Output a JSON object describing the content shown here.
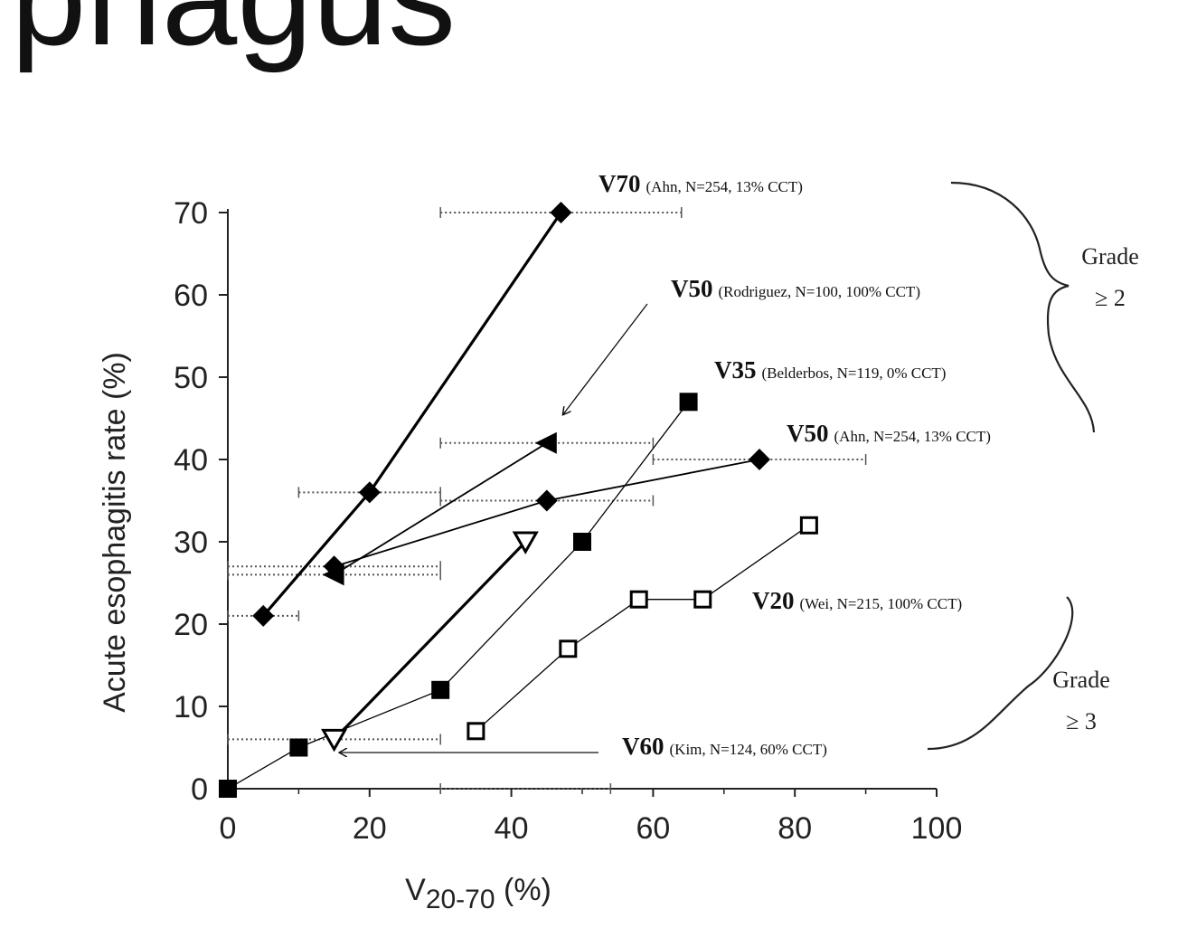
{
  "page": {
    "title": "phagus"
  },
  "chart_data": {
    "type": "scatter",
    "title": "",
    "xlabel": "V20-70 (%)",
    "xlabel_main": "V",
    "xlabel_sub": "20-70",
    "xlabel_tail": " (%)",
    "ylabel": "Acute esophagitis rate (%)",
    "xlim": [
      0,
      100
    ],
    "ylim": [
      0,
      70
    ],
    "xticks": [
      0,
      20,
      40,
      60,
      80,
      100
    ],
    "yticks": [
      0,
      10,
      20,
      30,
      40,
      50,
      60,
      70
    ],
    "grid": false,
    "series": [
      {
        "label_main": "V70",
        "label_detail": "(Ahn, N=254, 13% CCT)",
        "marker": "diamond-filled",
        "color": "#000000",
        "points": [
          [
            5,
            21
          ],
          [
            20,
            36
          ],
          [
            47,
            70
          ]
        ],
        "error_bars": [
          [
            0,
            10
          ],
          [
            10,
            30
          ],
          [
            30,
            64
          ]
        ]
      },
      {
        "label_main": "V50",
        "label_detail": "(Rodriguez, N=100, 100% CCT)",
        "marker": "triangle-left-filled",
        "color": "#000000",
        "points": [
          [
            15,
            26
          ],
          [
            45,
            42
          ]
        ],
        "error_bars": [
          [
            0,
            30
          ],
          [
            30,
            60
          ]
        ]
      },
      {
        "label_main": "V35",
        "label_detail": "(Belderbos, N=119, 0% CCT)",
        "marker": "square-filled",
        "color": "#000000",
        "points": [
          [
            0,
            0
          ],
          [
            10,
            5
          ],
          [
            30,
            12
          ],
          [
            50,
            30
          ],
          [
            65,
            47
          ]
        ],
        "error_bars": [
          [
            30,
            54
          ]
        ]
      },
      {
        "label_main": "V50",
        "label_detail": "(Ahn, N=254, 13% CCT)",
        "marker": "diamond-filled",
        "color": "#000000",
        "points": [
          [
            15,
            27
          ],
          [
            45,
            35
          ],
          [
            75,
            40
          ]
        ],
        "error_bars": [
          [
            0,
            30
          ],
          [
            30,
            60
          ],
          [
            60,
            90
          ]
        ]
      },
      {
        "label_main": "V20",
        "label_detail": "(Wei, N=215, 100% CCT)",
        "marker": "square-open",
        "color": "#000000",
        "points": [
          [
            35,
            7
          ],
          [
            48,
            17
          ],
          [
            58,
            23
          ],
          [
            67,
            23
          ],
          [
            82,
            32
          ]
        ],
        "error_bars": []
      },
      {
        "label_main": "V60",
        "label_detail": "(Kim, N=124, 60% CCT)",
        "marker": "triangle-down-open",
        "color": "#000000",
        "points": [
          [
            15,
            6
          ],
          [
            42,
            30
          ]
        ],
        "error_bars": [
          [
            0,
            30
          ]
        ]
      }
    ],
    "grades": [
      {
        "line1": "Grade",
        "line2": "≥ 2"
      },
      {
        "line1": "Grade",
        "line2": "≥ 3"
      }
    ]
  }
}
